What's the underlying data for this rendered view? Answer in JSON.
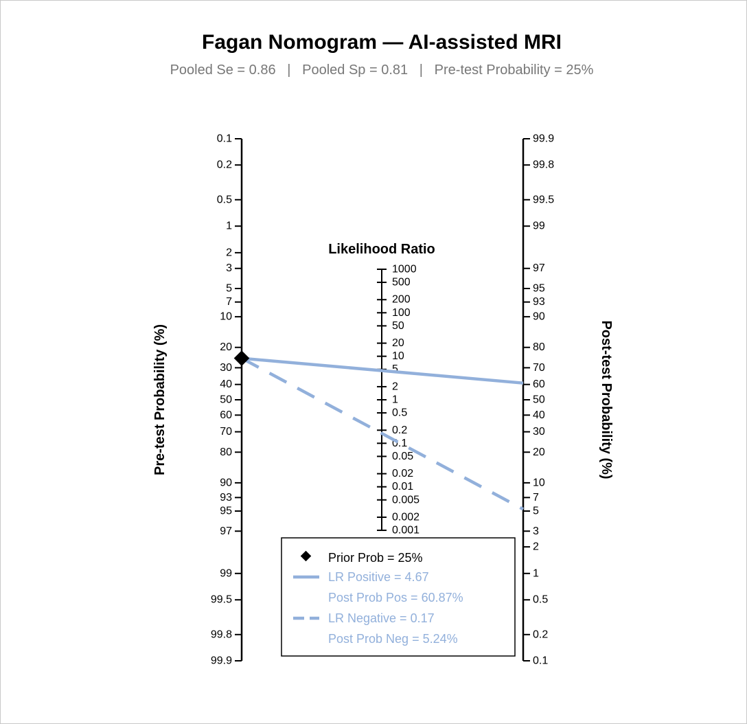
{
  "chart_data": {
    "type": "nomogram",
    "title": "Fagan Nomogram — AI-assisted MRI",
    "subtitle": "Pooled Se = 0.86   |   Pooled Sp = 0.81   |   Pre-test Probability = 25%",
    "left_axis": {
      "label": "Pre-test Probability (%)",
      "ticks": [
        "0.1",
        "0.2",
        "0.5",
        "1",
        "2",
        "3",
        "5",
        "7",
        "10",
        "20",
        "30",
        "40",
        "50",
        "60",
        "70",
        "80",
        "90",
        "93",
        "95",
        "97",
        "99",
        "99.5",
        "99.8",
        "99.9"
      ],
      "tick_values": [
        0.1,
        0.2,
        0.5,
        1,
        2,
        3,
        5,
        7,
        10,
        20,
        30,
        40,
        50,
        60,
        70,
        80,
        90,
        93,
        95,
        97,
        99,
        99.5,
        99.8,
        99.9
      ]
    },
    "middle_axis": {
      "label": "Likelihood Ratio",
      "ticks": [
        "1000",
        "500",
        "200",
        "100",
        "50",
        "20",
        "10",
        "5",
        "2",
        "1",
        "0.5",
        "0.2",
        "0.1",
        "0.05",
        "0.02",
        "0.01",
        "0.005",
        "0.002",
        "0.001"
      ],
      "tick_values": [
        1000,
        500,
        200,
        100,
        50,
        20,
        10,
        5,
        2,
        1,
        0.5,
        0.2,
        0.1,
        0.05,
        0.02,
        0.01,
        0.005,
        0.002,
        0.001
      ]
    },
    "right_axis": {
      "label": "Post-test Probability (%)",
      "ticks": [
        "99.9",
        "99.8",
        "99.5",
        "99",
        "97",
        "95",
        "93",
        "90",
        "80",
        "70",
        "60",
        "50",
        "40",
        "30",
        "20",
        "10",
        "7",
        "5",
        "3",
        "2",
        "1",
        "0.5",
        "0.2",
        "0.1"
      ],
      "tick_values": [
        99.9,
        99.8,
        99.5,
        99,
        97,
        95,
        93,
        90,
        80,
        70,
        60,
        50,
        40,
        30,
        20,
        10,
        7,
        5,
        3,
        2,
        1,
        0.5,
        0.2,
        0.1
      ]
    },
    "prior_prob": 25,
    "lr_positive": 4.67,
    "post_prob_pos": 60.87,
    "lr_negative": 0.17,
    "post_prob_neg": 5.24,
    "colors": {
      "axis": "#000000",
      "lines": "#92b0db",
      "marker": "#000000",
      "subtitle": "#777777",
      "legend_text_primary": "#000000",
      "legend_text_secondary": "#92b0db"
    },
    "legend": {
      "position": "bottom-right",
      "items": [
        {
          "key": "prior",
          "label": "Prior Prob = 25%"
        },
        {
          "key": "lr_pos",
          "label": "LR Positive = 4.67"
        },
        {
          "key": "post_pos",
          "label": "Post Prob Pos = 60.87%"
        },
        {
          "key": "lr_neg",
          "label": "LR Negative = 0.17"
        },
        {
          "key": "post_neg",
          "label": "Post Prob Neg = 5.24%"
        }
      ]
    }
  }
}
